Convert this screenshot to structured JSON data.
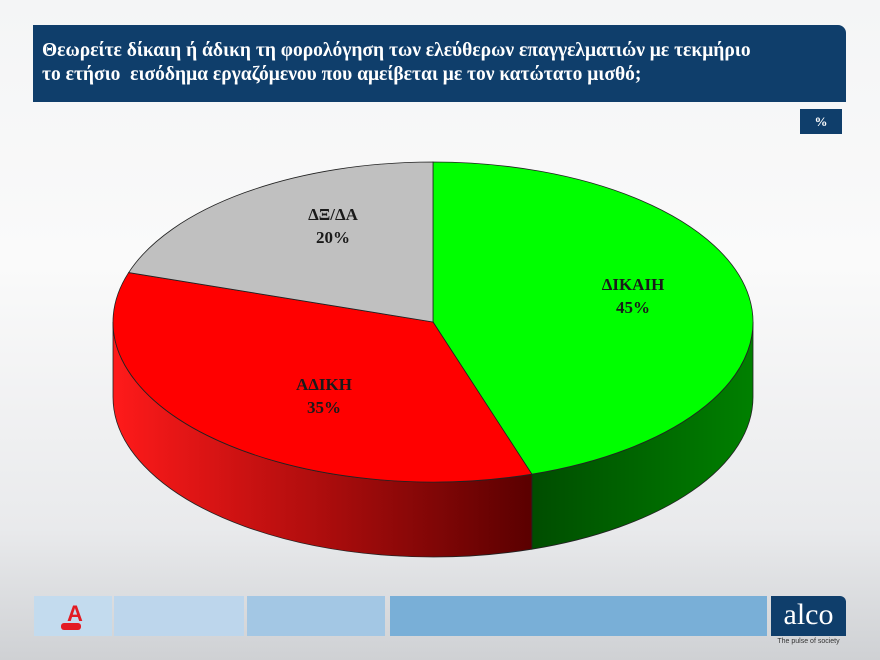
{
  "title": "Θεωρείτε δίκαιη ή άδικη τη φορολόγηση των ελεύθερων επαγγελματιών με τεκμήριο\nτο ετήσιο  εισόδημα εργαζόμενου που αμείβεται με τον κατώτατο μισθό;",
  "unit": "%",
  "footer": {
    "logo": "alco",
    "tagline": "The pulse of society",
    "partner_logo": "A NEWS"
  },
  "chart_data": {
    "type": "pie",
    "style": "3d",
    "values_unit": "%",
    "slices": [
      {
        "label": "ΔΙΚΑΙΗ",
        "value": 45,
        "display": "45%",
        "color": "#00ff00",
        "side_color": "#006600"
      },
      {
        "label": "ΑΔΙΚΗ",
        "value": 35,
        "display": "35%",
        "color": "#ff0000",
        "side_color": "#8b0000"
      },
      {
        "label": "ΔΞ/ΔΑ",
        "value": 20,
        "display": "20%",
        "color": "#c0c0c0",
        "side_color": "#808080"
      }
    ]
  }
}
